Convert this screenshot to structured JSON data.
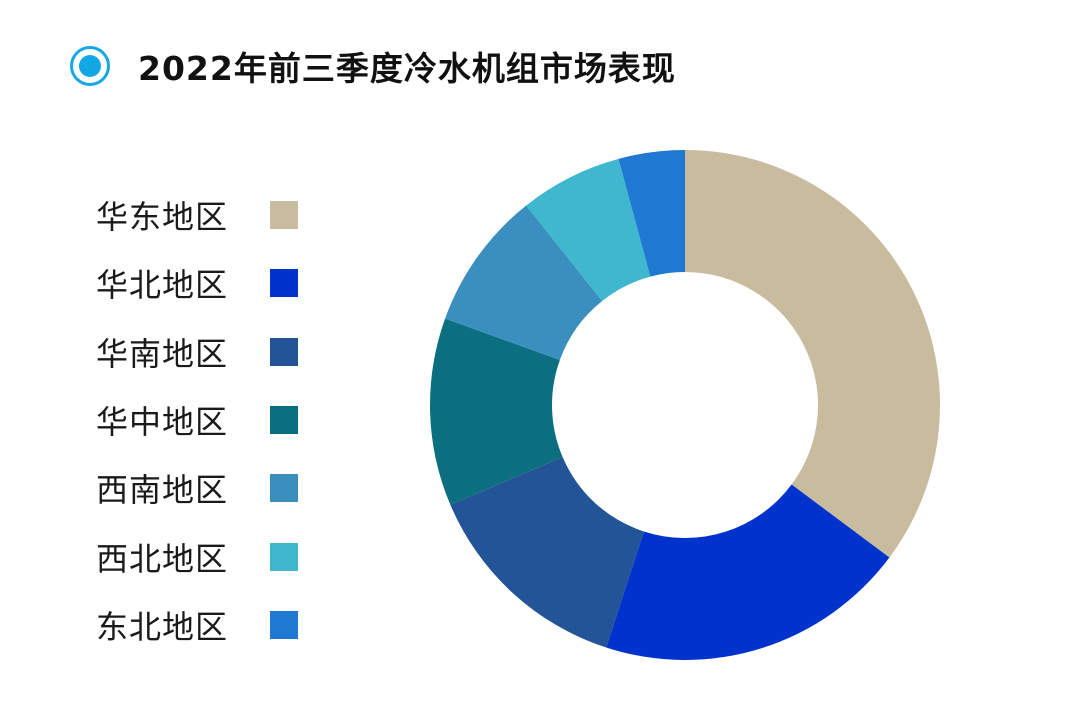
{
  "title": "2022年前三季度冷水机组市场表现",
  "accent_color": "#12a8e6",
  "chart_data": {
    "type": "pie",
    "style": "donut",
    "title": "2022年前三季度冷水机组市场表现",
    "legend_position": "left",
    "categories": [
      "华东地区",
      "华北地区",
      "华南地区",
      "华中地区",
      "西南地区",
      "西北地区",
      "东北地区"
    ],
    "values": [
      35.2,
      19.8,
      13.6,
      11.9,
      8.8,
      6.5,
      4.2
    ],
    "colors": [
      "#c8bb9e",
      "#0033cc",
      "#235497",
      "#0b6f7f",
      "#3a8fbf",
      "#3fb8cf",
      "#1f78d1"
    ]
  }
}
